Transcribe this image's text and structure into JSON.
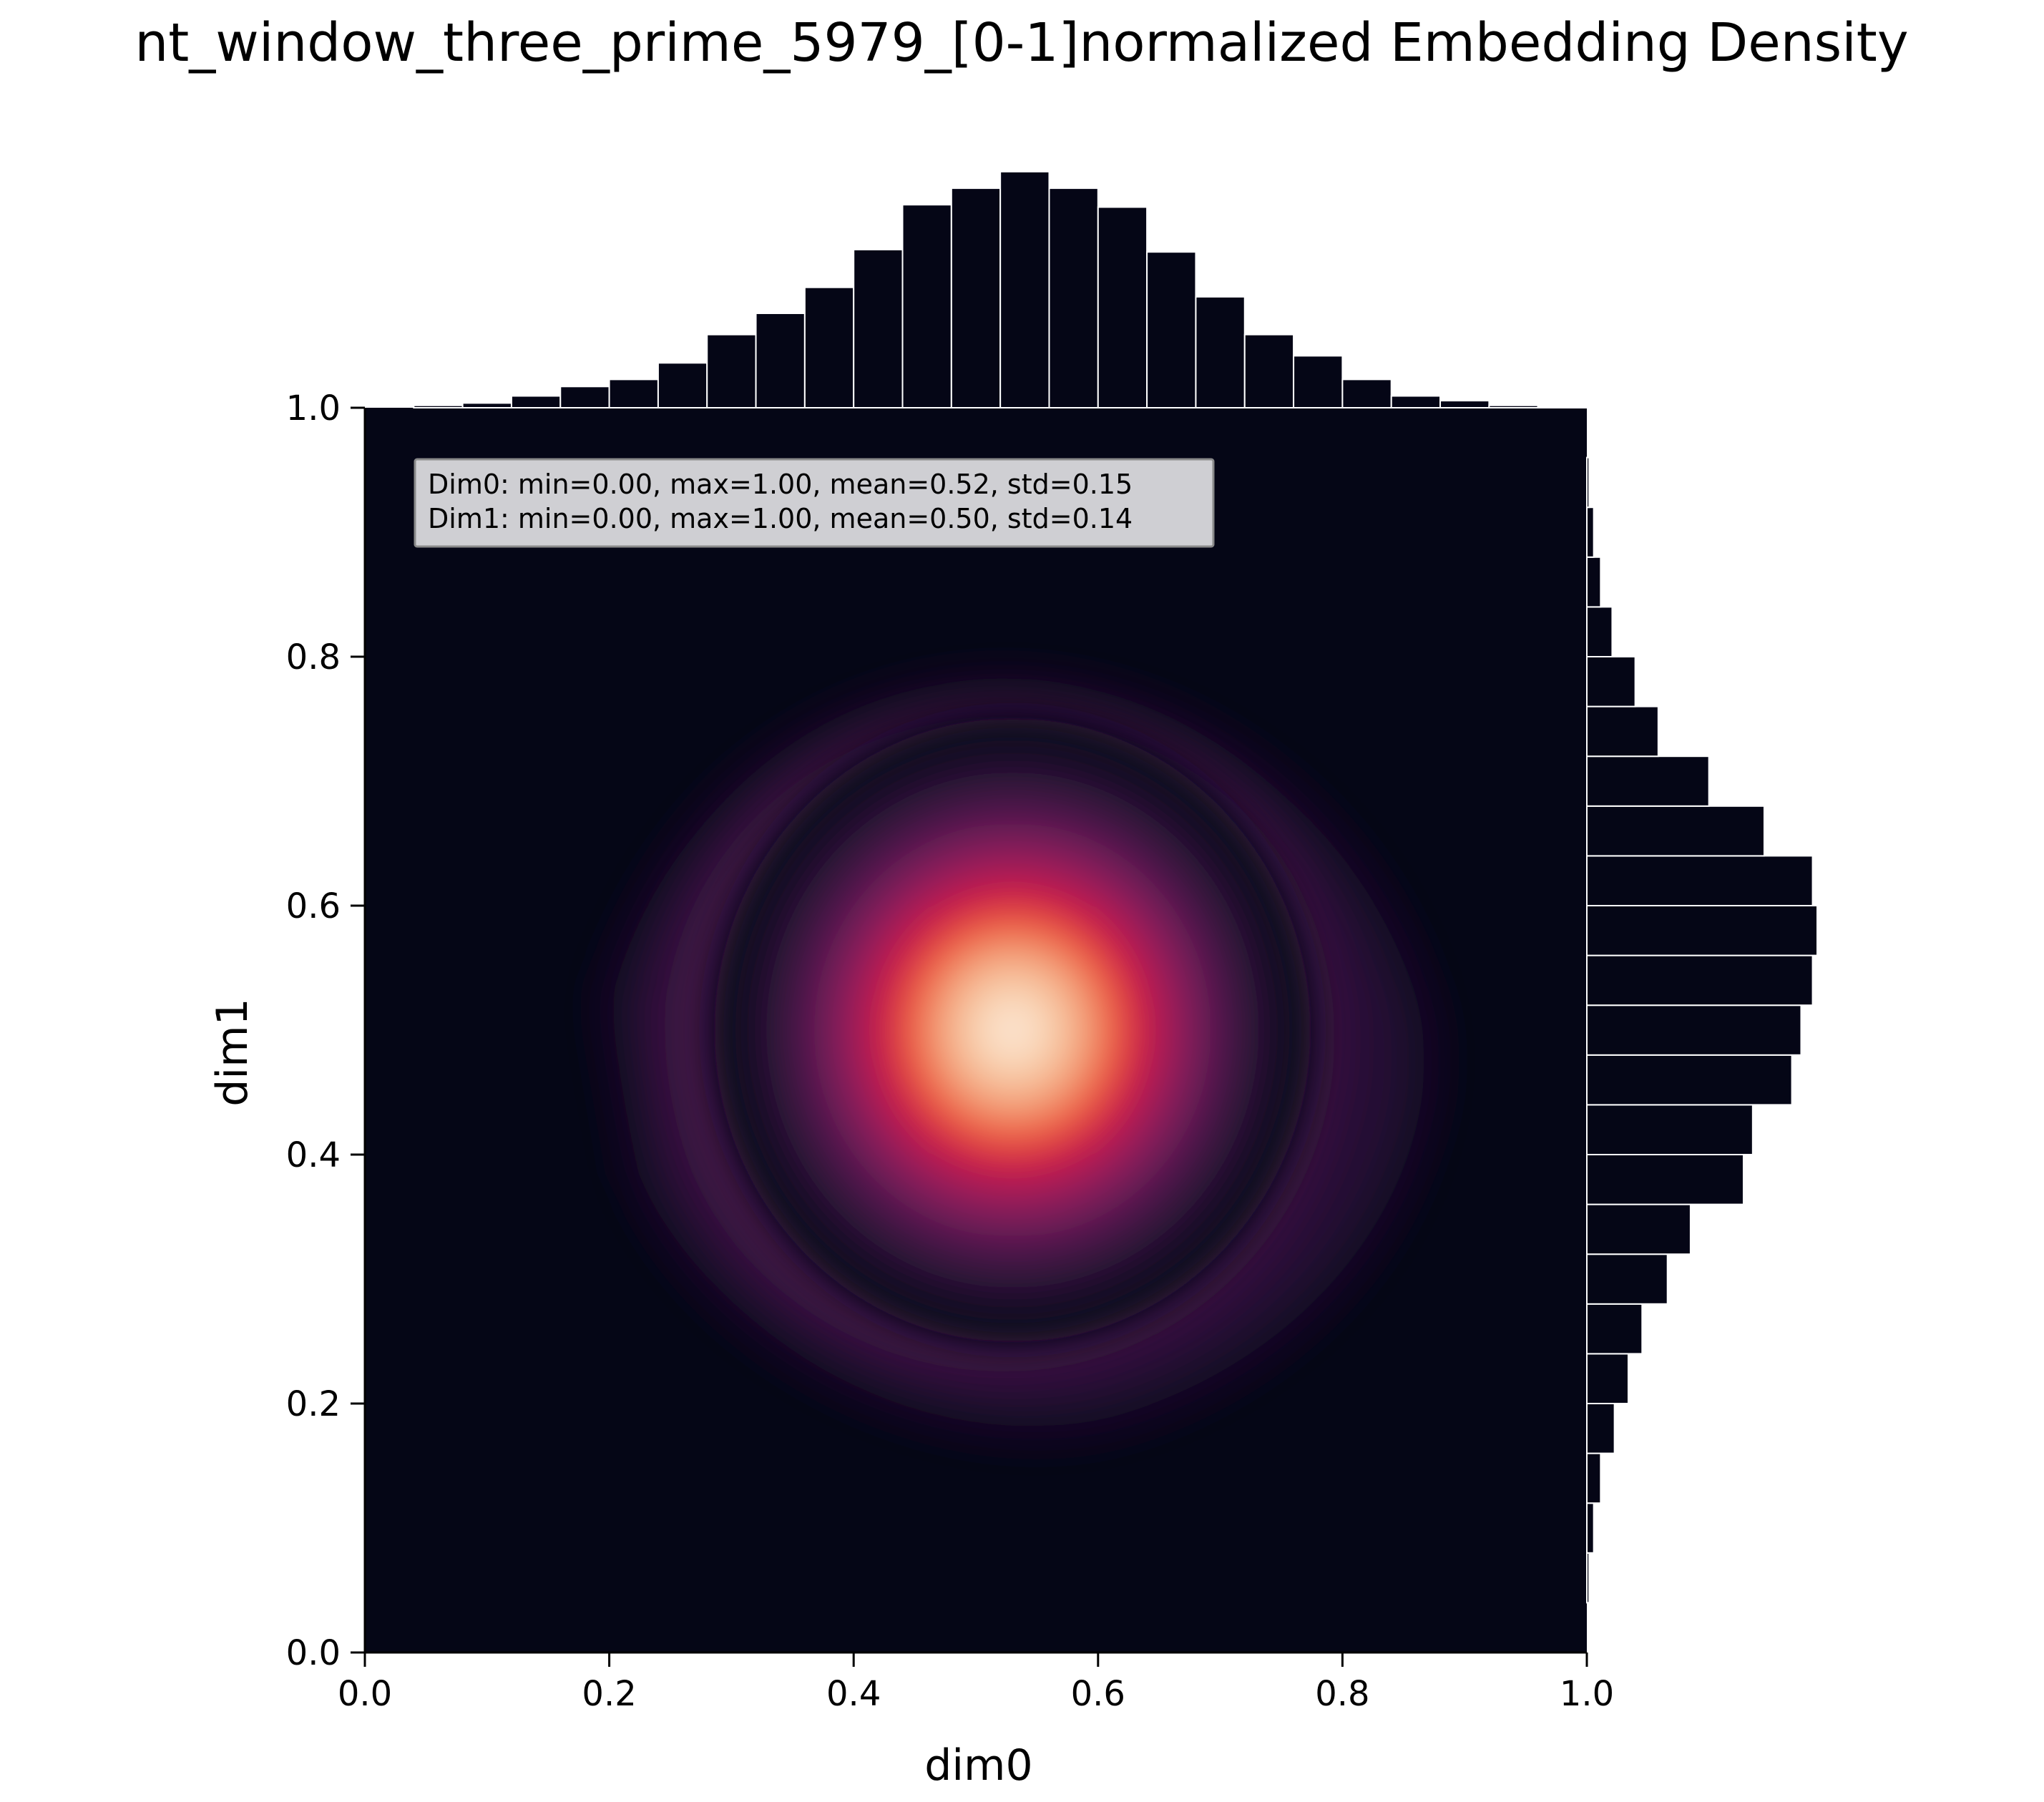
{
  "chart_data": {
    "type": "heatmap",
    "subtype": "joint-kde-with-marginal-histograms",
    "title": "nt_window_three_prime_5979_[0-1]normalized Embedding Density",
    "xlabel": "dim0",
    "ylabel": "dim1",
    "xlim": [
      0,
      1
    ],
    "ylim": [
      0,
      1
    ],
    "xticks": [
      "0.0",
      "0.2",
      "0.4",
      "0.6",
      "0.8",
      "1.0"
    ],
    "yticks": [
      "0.0",
      "0.2",
      "0.4",
      "0.6",
      "0.8",
      "1.0"
    ],
    "grid": false,
    "colormap": "rocket",
    "colors": {
      "background": "#050616",
      "bar_fill": "#050616",
      "bar_edge": "#ffffff",
      "stats_box_fill": "#cfcfd3",
      "stats_box_edge": "#8a8a8a"
    },
    "annotation": {
      "position": "top-left",
      "lines": [
        "Dim0: min=0.00, max=1.00, mean=0.52, std=0.15",
        "Dim1: min=0.00, max=1.00, mean=0.50, std=0.14"
      ]
    },
    "density_peak": {
      "x": 0.53,
      "y": 0.5
    },
    "top_histogram": {
      "bin_edges_start": 0.0,
      "bin_width": 0.04,
      "counts": [
        0.0,
        0.01,
        0.02,
        0.05,
        0.09,
        0.12,
        0.19,
        0.31,
        0.4,
        0.51,
        0.67,
        0.86,
        0.93,
        1.0,
        0.93,
        0.85,
        0.66,
        0.47,
        0.31,
        0.22,
        0.12,
        0.05,
        0.03,
        0.01,
        0.005
      ]
    },
    "right_histogram": {
      "bin_edges_start": 0.0,
      "bin_width": 0.04,
      "counts": [
        0.0,
        0.01,
        0.03,
        0.06,
        0.12,
        0.18,
        0.24,
        0.35,
        0.45,
        0.68,
        0.72,
        0.89,
        0.93,
        0.98,
        1.0,
        0.98,
        0.77,
        0.53,
        0.31,
        0.21,
        0.11,
        0.06,
        0.03,
        0.01,
        0.0
      ]
    }
  }
}
